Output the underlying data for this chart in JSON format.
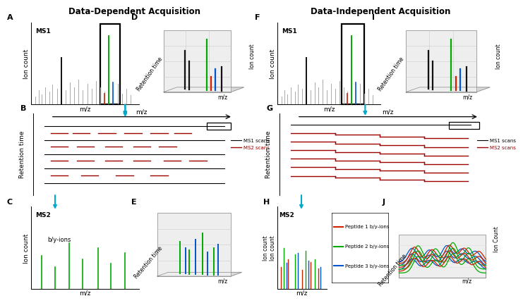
{
  "title_dda": "Data-Dependent Acquisition",
  "title_dia": "Data-Independent Acquisition",
  "ms1_label": "MS1",
  "ms2_label": "MS2",
  "ion_count_label": "Ion count",
  "mz_label": "m/z",
  "rt_label": "Retention time",
  "by_ions_label": "b/y-ions",
  "ms1_scans_label": "MS1 scans",
  "ms2_scans_label": "MS2 scans",
  "peptide1_label": "Peptide 1 b/y-ions",
  "peptide2_label": "Peptide 2 b/y-ions",
  "peptide3_label": "Peptide 3 b/y-ions",
  "color_gray": "#aaaaaa",
  "color_black": "#111111",
  "color_green": "#00aa00",
  "color_red": "#cc2200",
  "color_blue": "#0055cc",
  "color_darkred": "#990000",
  "color_cyan": "#00aacc",
  "color_lightgray": "#cccccc"
}
